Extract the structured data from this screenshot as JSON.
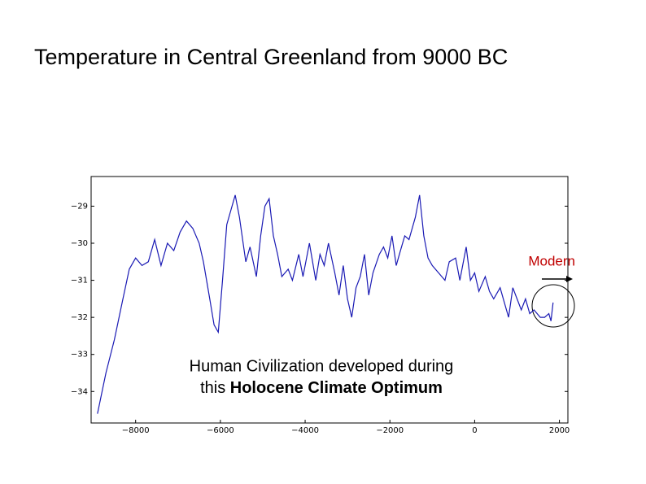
{
  "title": "Temperature in Central Greenland from 9000 BC",
  "chart_data": {
    "type": "line",
    "color": "#1a1ab4",
    "xlim": [
      -9050,
      2200
    ],
    "ylim": [
      -34.85,
      -28.2
    ],
    "xticks": [
      {
        "value": -8000,
        "label": "−8000"
      },
      {
        "value": -6000,
        "label": "−6000"
      },
      {
        "value": -4000,
        "label": "−4000"
      },
      {
        "value": -2000,
        "label": "−2000"
      },
      0,
      2000
    ],
    "yticks": [
      {
        "value": -29,
        "label": "−29"
      },
      {
        "value": -30,
        "label": "−30"
      },
      {
        "value": -31,
        "label": "−31"
      },
      {
        "value": -32,
        "label": "−32"
      },
      {
        "value": -33,
        "label": "−33"
      },
      {
        "value": -34,
        "label": "−34"
      }
    ],
    "x": [
      -8900,
      -8700,
      -8500,
      -8300,
      -8150,
      -8000,
      -7850,
      -7700,
      -7550,
      -7400,
      -7250,
      -7100,
      -6950,
      -6800,
      -6650,
      -6500,
      -6400,
      -6250,
      -6150,
      -6050,
      -5950,
      -5850,
      -5750,
      -5650,
      -5550,
      -5400,
      -5300,
      -5150,
      -5050,
      -4950,
      -4850,
      -4750,
      -4650,
      -4550,
      -4400,
      -4300,
      -4150,
      -4050,
      -3900,
      -3750,
      -3650,
      -3550,
      -3450,
      -3300,
      -3200,
      -3100,
      -3000,
      -2900,
      -2800,
      -2700,
      -2600,
      -2500,
      -2400,
      -2250,
      -2150,
      -2050,
      -1950,
      -1850,
      -1750,
      -1650,
      -1550,
      -1400,
      -1300,
      -1200,
      -1100,
      -1000,
      -850,
      -700,
      -600,
      -450,
      -350,
      -200,
      -100,
      0,
      100,
      250,
      350,
      450,
      600,
      700,
      800,
      900,
      1000,
      1100,
      1200,
      1300,
      1400,
      1550,
      1650,
      1750,
      1800,
      1850
    ],
    "values": [
      -34.6,
      -33.5,
      -32.6,
      -31.5,
      -30.7,
      -30.4,
      -30.6,
      -30.5,
      -29.9,
      -30.6,
      -30.0,
      -30.2,
      -29.7,
      -29.4,
      -29.6,
      -30.0,
      -30.5,
      -31.5,
      -32.2,
      -32.4,
      -31.0,
      -29.5,
      -29.1,
      -28.7,
      -29.3,
      -30.5,
      -30.1,
      -30.9,
      -29.8,
      -29.0,
      -28.8,
      -29.8,
      -30.3,
      -30.9,
      -30.7,
      -31.0,
      -30.3,
      -30.9,
      -30.0,
      -31.0,
      -30.3,
      -30.6,
      -30.0,
      -30.8,
      -31.4,
      -30.6,
      -31.5,
      -32.0,
      -31.2,
      -30.9,
      -30.3,
      -31.4,
      -30.8,
      -30.3,
      -30.1,
      -30.4,
      -29.8,
      -30.6,
      -30.2,
      -29.8,
      -29.9,
      -29.3,
      -28.7,
      -29.8,
      -30.4,
      -30.6,
      -30.8,
      -31.0,
      -30.5,
      -30.4,
      -31.0,
      -30.1,
      -31.0,
      -30.8,
      -31.3,
      -30.9,
      -31.3,
      -31.5,
      -31.2,
      -31.6,
      -32.0,
      -31.2,
      -31.5,
      -31.8,
      -31.5,
      -31.9,
      -31.8,
      -32.0,
      -32.0,
      -31.9,
      -32.1,
      -31.6
    ],
    "annotations": {
      "modern": "Modern",
      "note_line1": "Human Civilization developed during",
      "note_this": "this",
      "note_bold": "Holocene Climate Optimum"
    }
  }
}
